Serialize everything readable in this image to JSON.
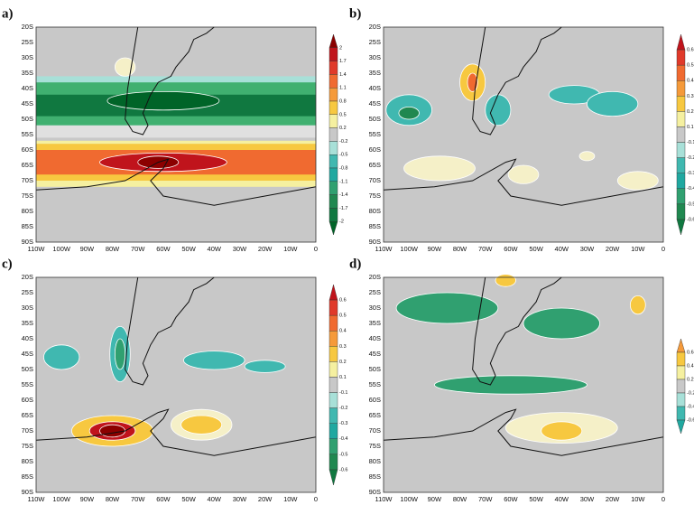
{
  "panels": [
    {
      "label": "a)",
      "colorbar": [
        "2",
        "1.7",
        "1.4",
        "1.1",
        "0.8",
        "0.5",
        "0.2",
        "-0.2",
        "-0.5",
        "-0.8",
        "-1.1",
        "-1.4",
        "-1.7",
        "-2"
      ]
    },
    {
      "label": "b)",
      "colorbar": [
        "0.6",
        "0.5",
        "0.4",
        "0.3",
        "0.2",
        "0.1",
        "-0.1",
        "-0.2",
        "-0.3",
        "-0.4",
        "-0.5",
        "-0.6"
      ]
    },
    {
      "label": "c)",
      "colorbar": [
        "0.6",
        "0.5",
        "0.4",
        "0.3",
        "0.2",
        "0.1",
        "-0.1",
        "-0.2",
        "-0.3",
        "-0.4",
        "-0.5",
        "-0.6"
      ]
    },
    {
      "label": "d)",
      "colorbar": [
        "0.6",
        "0.4",
        "0.2",
        "-0.2",
        "-0.4",
        "-0.6"
      ]
    }
  ],
  "lat_labels": [
    "20S",
    "25S",
    "30S",
    "35S",
    "40S",
    "45S",
    "50S",
    "55S",
    "60S",
    "65S",
    "70S",
    "75S",
    "80S",
    "85S",
    "90S"
  ],
  "lon_labels": [
    "110W",
    "100W",
    "90W",
    "80W",
    "70W",
    "60W",
    "50W",
    "40W",
    "30W",
    "20W",
    "10W",
    "0"
  ]
}
